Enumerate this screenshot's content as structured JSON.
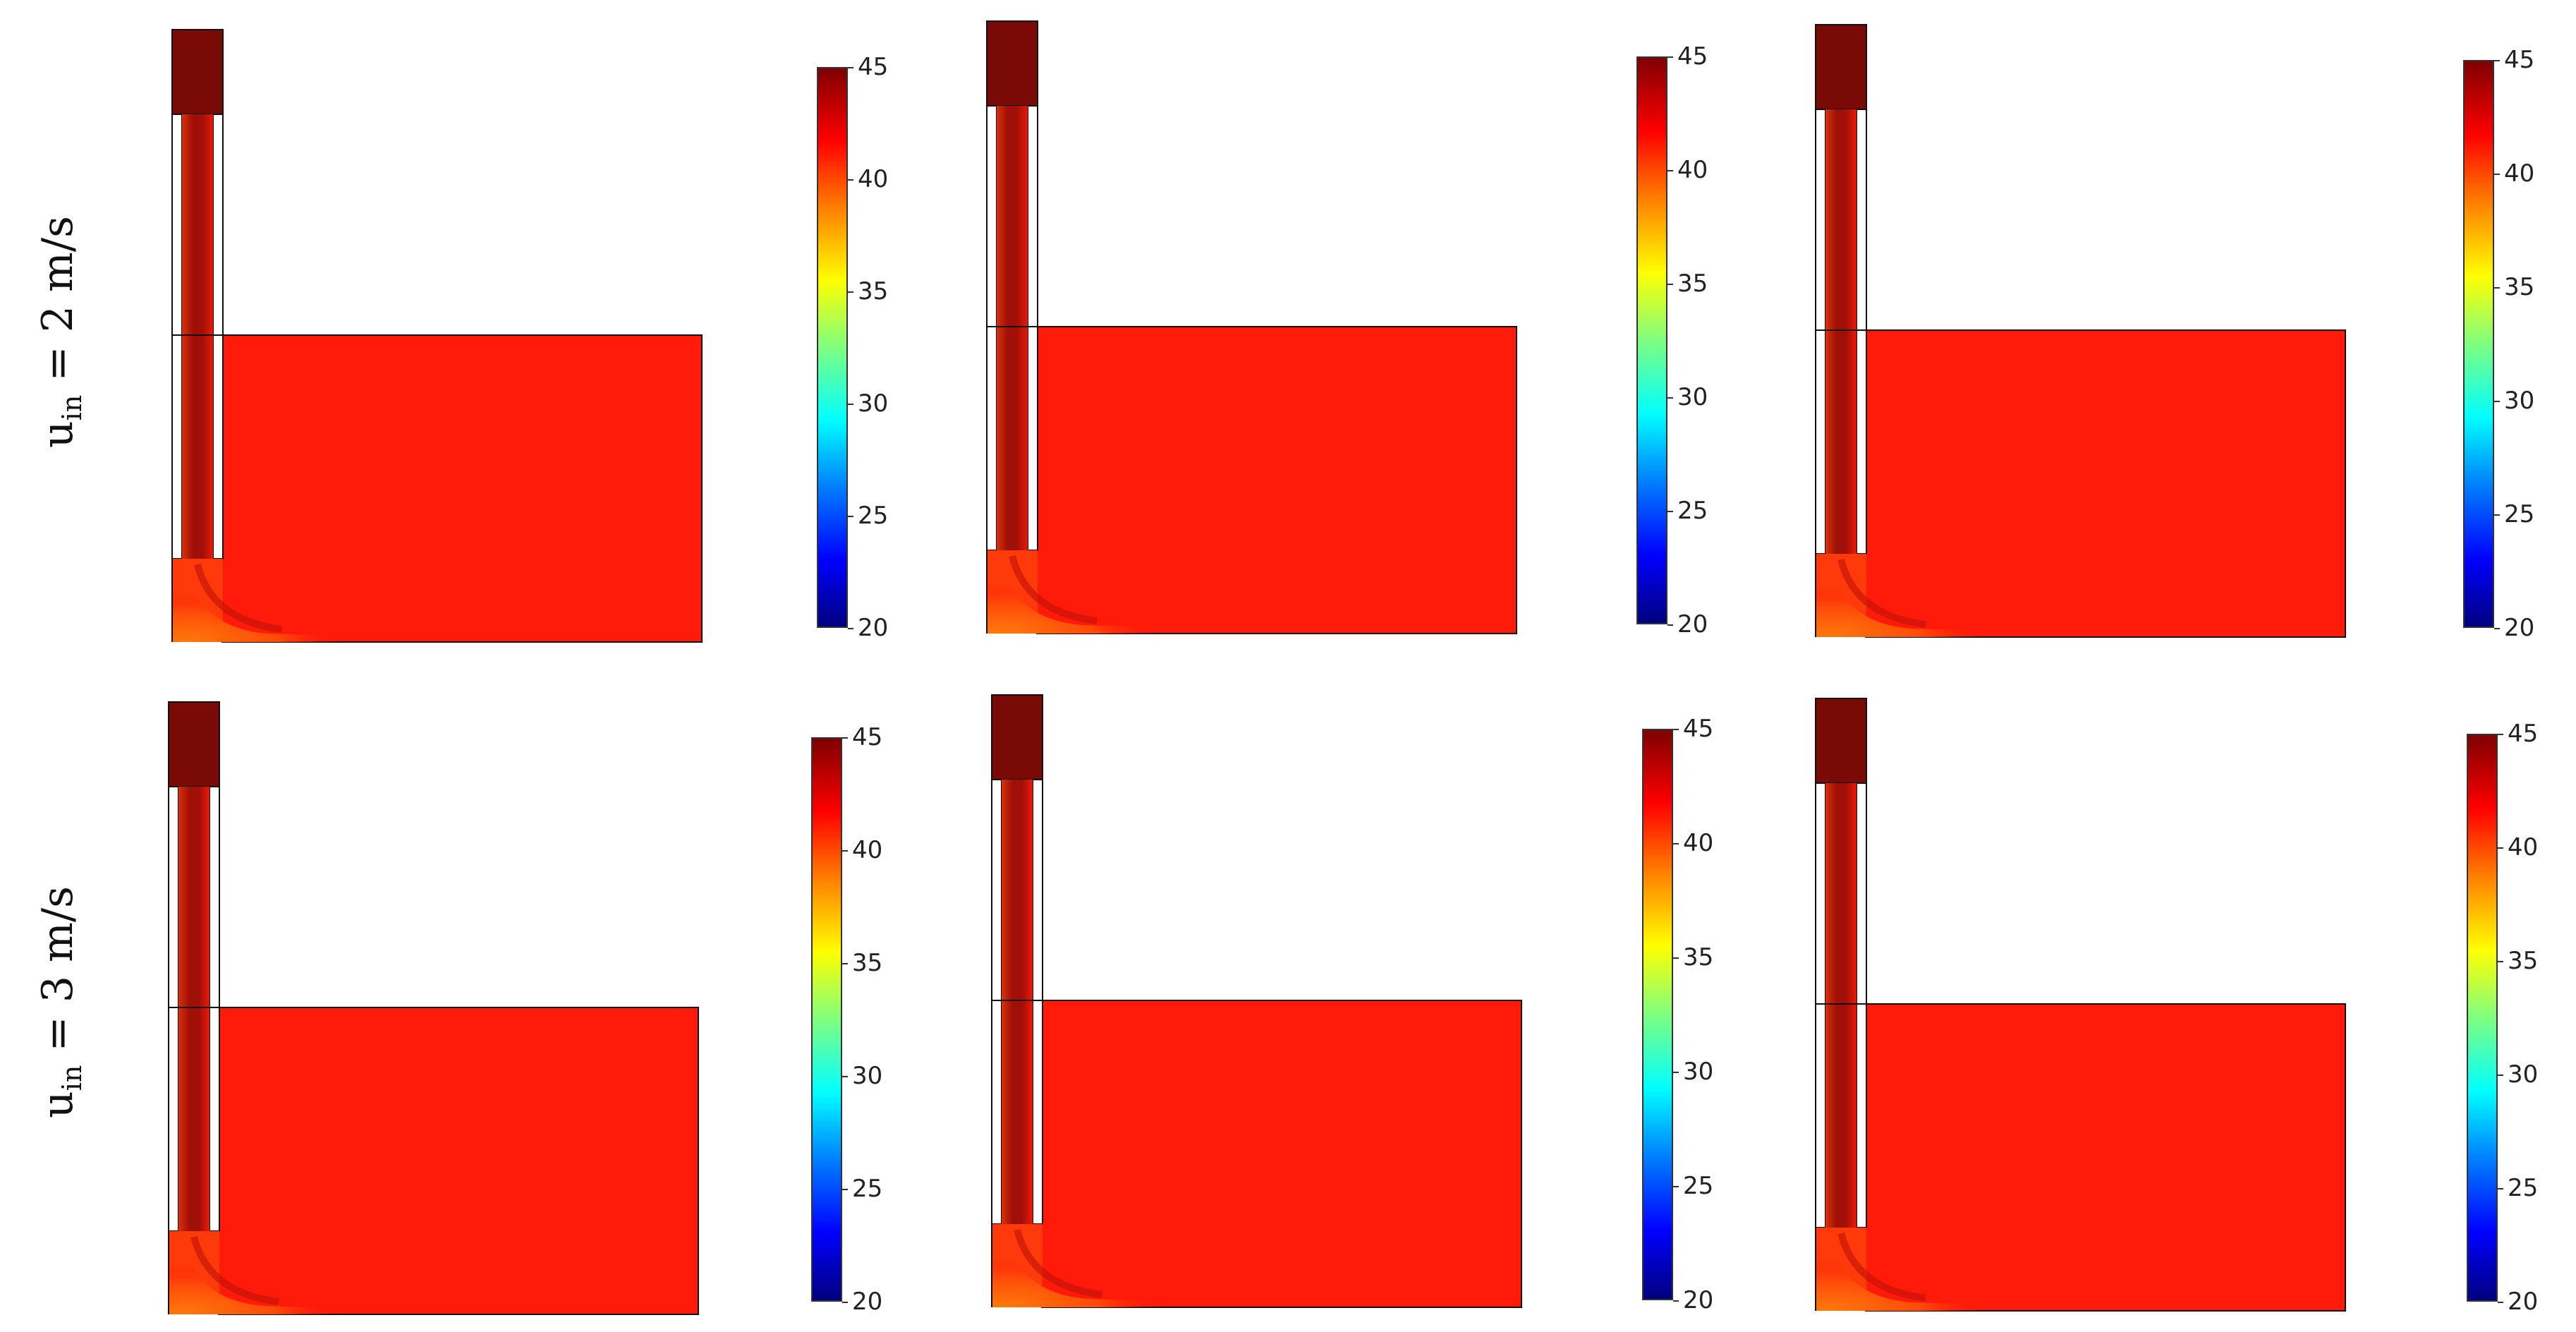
{
  "row_labels": [
    {
      "symbol": "u",
      "subscript": "in",
      "rest": " = 2 m/s"
    },
    {
      "symbol": "u",
      "subscript": "in",
      "rest": " = 3 m/s"
    }
  ],
  "colorbar": {
    "ticks": [
      "45",
      "40",
      "35",
      "30",
      "25",
      "20"
    ],
    "range": [
      20,
      45
    ],
    "colormap": "jet"
  },
  "colors": {
    "domain_fill": "#ff1a0a",
    "inlet_fill": "#7a0a05",
    "jet_core": "#a00f08",
    "outline": "#111111"
  }
}
